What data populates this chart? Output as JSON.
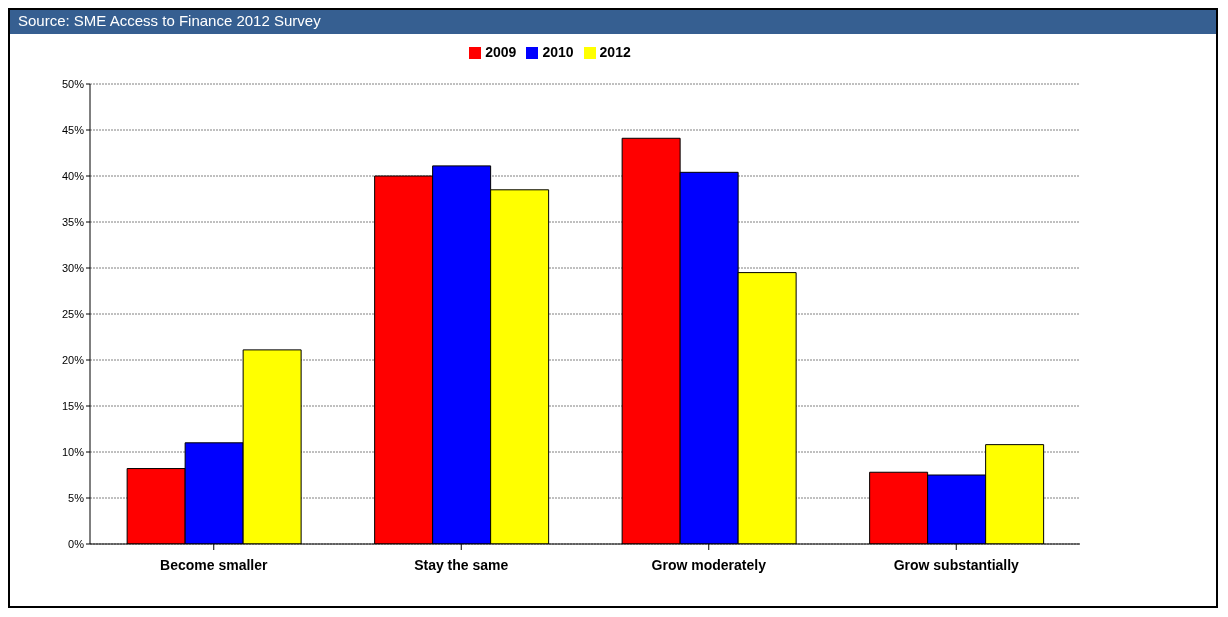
{
  "chart_data": {
    "type": "bar",
    "annotations": [
      "Source: SME Access to Finance 2012 Survey"
    ],
    "categories": [
      "Become smaller",
      "Stay the same",
      "Grow moderately",
      "Grow substantially"
    ],
    "series": [
      {
        "name": "2009",
        "color": "#ff0000",
        "values": [
          8.2,
          40.0,
          44.1,
          7.8
        ]
      },
      {
        "name": "2010",
        "color": "#0000ff",
        "values": [
          11.0,
          41.1,
          40.4,
          7.5
        ]
      },
      {
        "name": "2012",
        "color": "#ffff00",
        "values": [
          21.1,
          38.5,
          29.5,
          10.8
        ]
      }
    ],
    "ylim": [
      0,
      50
    ],
    "yticks": [
      {
        "value": 0,
        "label": "0%"
      },
      {
        "value": 5,
        "label": "5%"
      },
      {
        "value": 10,
        "label": "10%"
      },
      {
        "value": 15,
        "label": "15%"
      },
      {
        "value": 20,
        "label": "20%"
      },
      {
        "value": 25,
        "label": "25%"
      },
      {
        "value": 30,
        "label": "30%"
      },
      {
        "value": 35,
        "label": "35%"
      },
      {
        "value": 40,
        "label": "40%"
      },
      {
        "value": 45,
        "label": "45%"
      },
      {
        "value": 50,
        "label": "50%"
      }
    ],
    "grid": "y",
    "legend": "top"
  }
}
